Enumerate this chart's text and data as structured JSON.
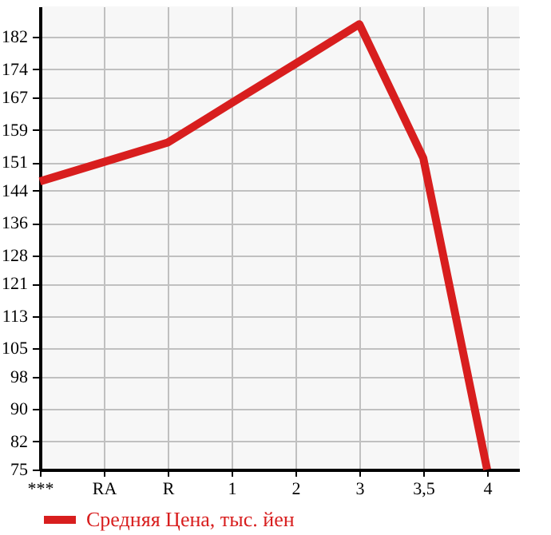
{
  "chart_data": {
    "type": "line",
    "categories": [
      "***",
      "RA",
      "R",
      "1",
      "2",
      "3",
      "3,5",
      "4"
    ],
    "series": [
      {
        "name": "Средняя Цена, тыс. йен",
        "color": "#d81e1e",
        "values": [
          146.3,
          151.1,
          155.9,
          165.7,
          175.4,
          185.2,
          152.1,
          75
        ]
      }
    ],
    "ylim": [
      75,
      189.6
    ],
    "yticks": [
      75,
      82,
      90,
      98,
      105,
      113,
      121,
      128,
      136,
      144,
      151,
      159,
      167,
      174,
      182
    ],
    "grid": true,
    "legend": "bottom left",
    "marker": "none",
    "line_style": "solid"
  }
}
